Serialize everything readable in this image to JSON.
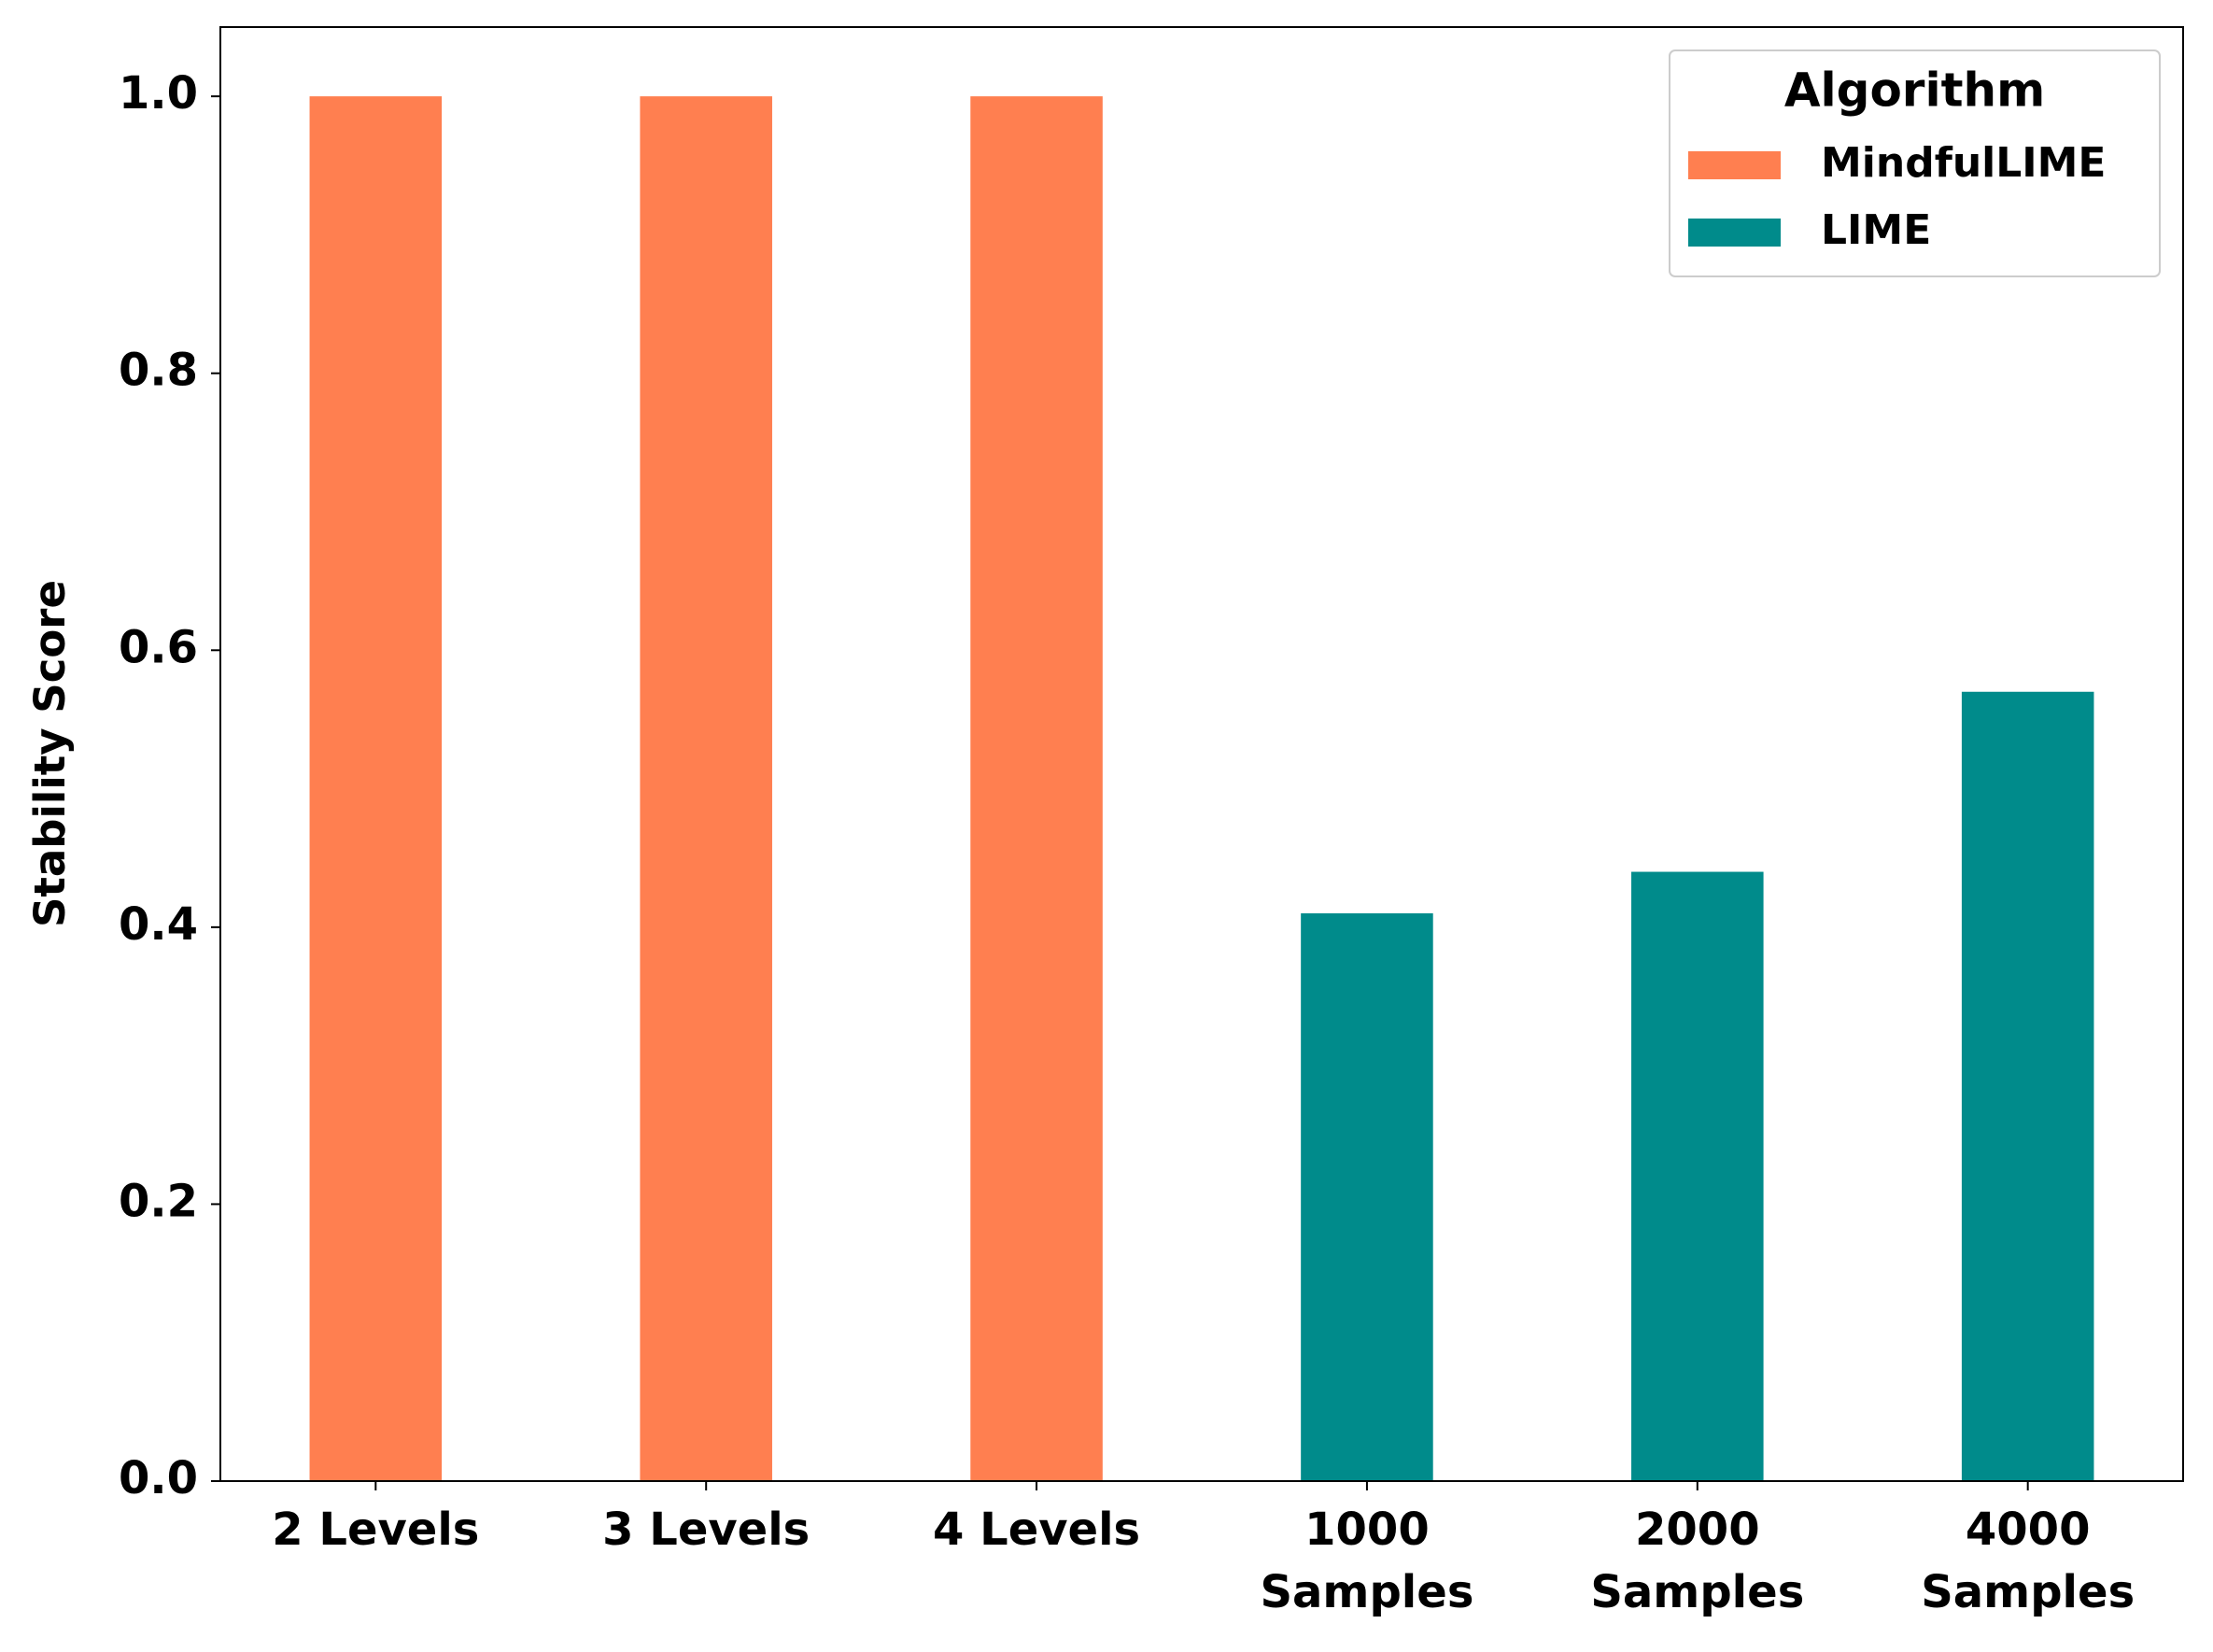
{
  "chart_data": {
    "type": "bar",
    "ylabel": "Stability Score",
    "categories": [
      "2 Levels",
      "3 Levels",
      "4 Levels",
      "1000\nSamples",
      "2000\nSamples",
      "4000\nSamples"
    ],
    "series": [
      {
        "name": "MindfulLIME",
        "color": "#ff7f50",
        "values": [
          1.0,
          1.0,
          1.0,
          null,
          null,
          null
        ]
      },
      {
        "name": "LIME",
        "color": "#008b8b",
        "values": [
          null,
          null,
          null,
          0.41,
          0.44,
          0.57
        ]
      }
    ],
    "ylim": [
      0,
      1.05
    ],
    "yticks": [
      {
        "value": 0,
        "label": "0.0"
      },
      0.2,
      0.4,
      0.6,
      0.8,
      {
        "value": 1,
        "label": "1.0"
      }
    ],
    "legend_title": "Algorithm",
    "legend_loc": "upper right",
    "grid": false
  }
}
